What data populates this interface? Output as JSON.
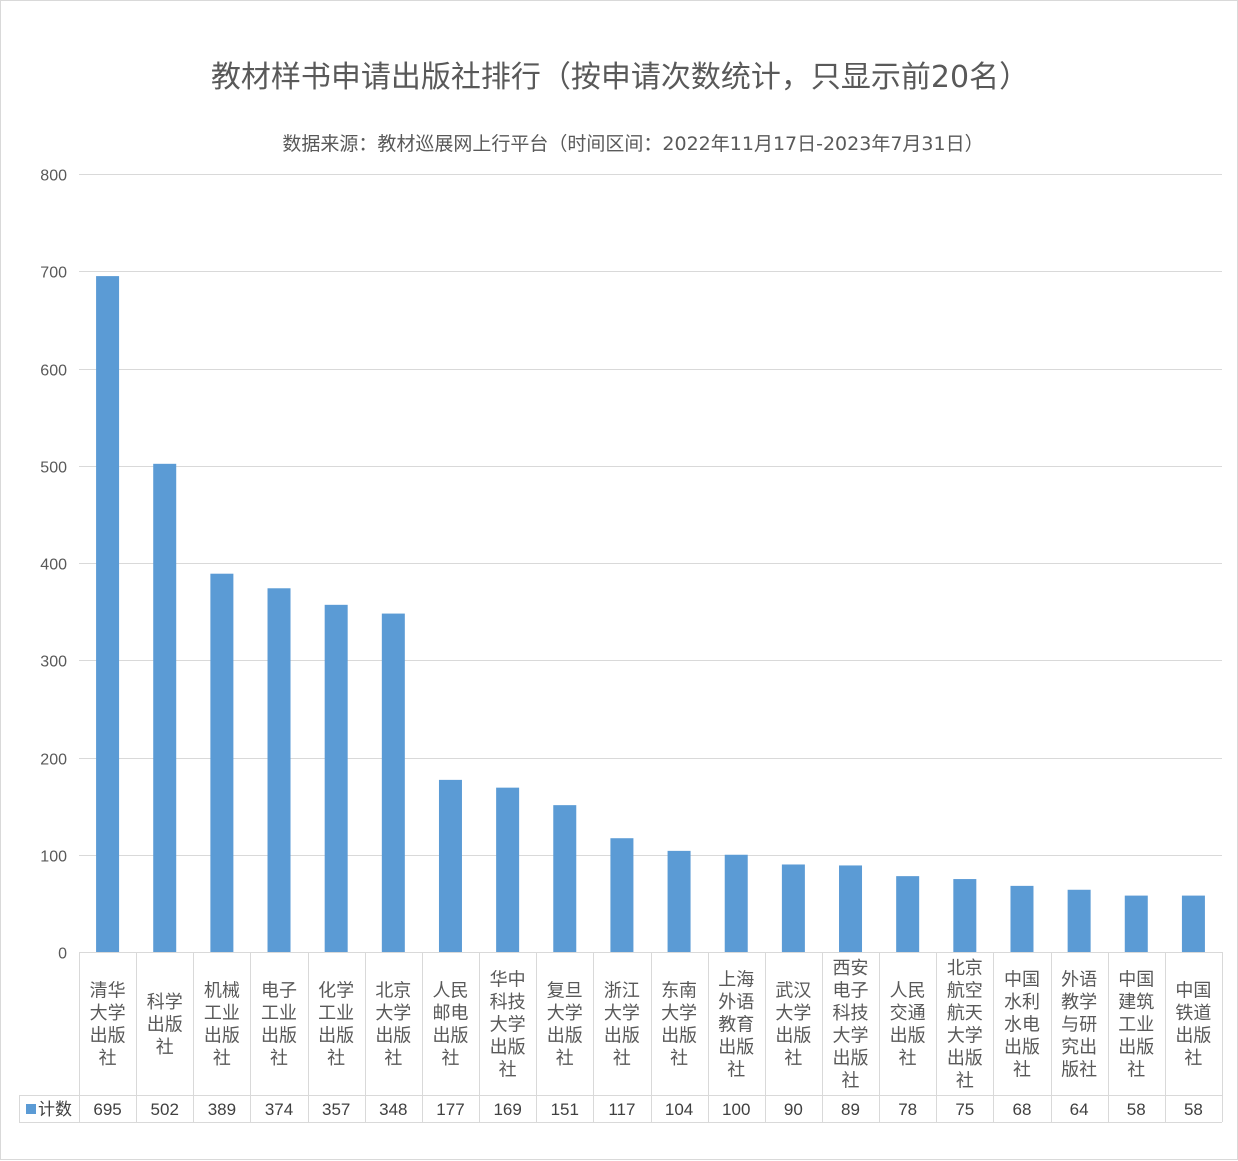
{
  "chart_data": {
    "type": "bar",
    "title": "教材样书申请出版社排行（按申请次数统计，只显示前20名）",
    "subtitle": "数据来源：教材巡展网上行平台（时间区间：2022年11月17日-2023年7月31日）",
    "categories": [
      "清华大学出版社",
      "科学出版社",
      "机械工业出版社",
      "电子工业出版社",
      "化学工业出版社",
      "北京大学出版社",
      "人民邮电出版社",
      "华中科技大学出版社",
      "复旦大学出版社",
      "浙江大学出版社",
      "东南大学出版社",
      "上海外语教育出版社",
      "武汉大学出版社",
      "西安电子科技大学出版社",
      "人民交通出版社",
      "北京航空航天大学出版社",
      "中国水利水电出版社",
      "外语教学与研究出版社",
      "中国建筑工业出版社",
      "中国铁道出版社"
    ],
    "category_lines": [
      [
        "清华",
        "大学",
        "出版",
        "社"
      ],
      [
        "科学",
        "出版",
        "社"
      ],
      [
        "机械",
        "工业",
        "出版",
        "社"
      ],
      [
        "电子",
        "工业",
        "出版",
        "社"
      ],
      [
        "化学",
        "工业",
        "出版",
        "社"
      ],
      [
        "北京",
        "大学",
        "出版",
        "社"
      ],
      [
        "人民",
        "邮电",
        "出版",
        "社"
      ],
      [
        "华中",
        "科技",
        "大学",
        "出版",
        "社"
      ],
      [
        "复旦",
        "大学",
        "出版",
        "社"
      ],
      [
        "浙江",
        "大学",
        "出版",
        "社"
      ],
      [
        "东南",
        "大学",
        "出版",
        "社"
      ],
      [
        "上海",
        "外语",
        "教育",
        "出版",
        "社"
      ],
      [
        "武汉",
        "大学",
        "出版",
        "社"
      ],
      [
        "西安",
        "电子",
        "科技",
        "大学",
        "出版",
        "社"
      ],
      [
        "人民",
        "交通",
        "出版",
        "社"
      ],
      [
        "北京",
        "航空",
        "航天",
        "大学",
        "出版",
        "社"
      ],
      [
        "中国",
        "水利",
        "水电",
        "出版",
        "社"
      ],
      [
        "外语",
        "教学",
        "与研",
        "究出",
        "版社"
      ],
      [
        "中国",
        "建筑",
        "工业",
        "出版",
        "社"
      ],
      [
        "中国",
        "铁道",
        "出版",
        "社"
      ]
    ],
    "series": [
      {
        "name": "计数",
        "color": "#5b9bd5",
        "values": [
          695,
          502,
          389,
          374,
          357,
          348,
          177,
          169,
          151,
          117,
          104,
          100,
          90,
          89,
          78,
          75,
          68,
          64,
          58,
          58
        ]
      }
    ],
    "yticks": [
      "0",
      "100",
      "200",
      "300",
      "400",
      "500",
      "600",
      "700",
      "800"
    ],
    "ylim": [
      0,
      800
    ],
    "grid": true,
    "legend": "bottom-left data table",
    "xlabel": "",
    "ylabel": ""
  }
}
